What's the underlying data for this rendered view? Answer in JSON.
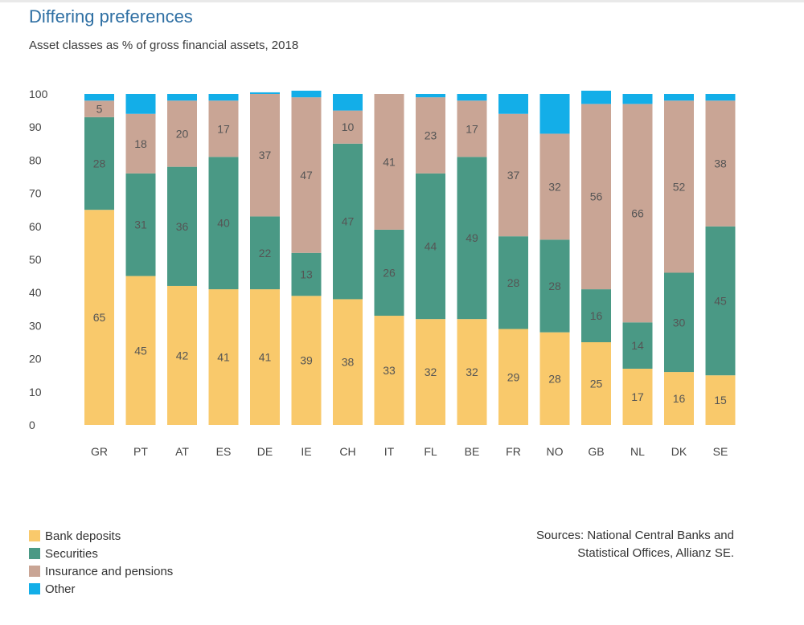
{
  "header": {
    "title": "Differing preferences",
    "subtitle": "Asset classes as % of gross financial assets, 2018"
  },
  "sources": {
    "line1": "Sources: National Central Banks and",
    "line2": "Statistical Offices, Allianz SE."
  },
  "chart_data": {
    "type": "bar",
    "stacked": true,
    "title": "Differing preferences",
    "subtitle": "Asset classes as % of gross financial assets, 2018",
    "categories": [
      "GR",
      "PT",
      "AT",
      "ES",
      "DE",
      "IE",
      "CH",
      "IT",
      "FL",
      "BE",
      "FR",
      "NO",
      "GB",
      "NL",
      "DK",
      "SE"
    ],
    "ylim": [
      0,
      100
    ],
    "yticks": [
      0,
      10,
      20,
      30,
      40,
      50,
      60,
      70,
      80,
      90,
      100
    ],
    "grid": false,
    "legend_position": "bottom-left",
    "series": [
      {
        "name": "Bank deposits",
        "color": "#f9c96b",
        "values": [
          65,
          45,
          42,
          41,
          41,
          39,
          38,
          33,
          32,
          32,
          29,
          28,
          25,
          17,
          16,
          15
        ]
      },
      {
        "name": "Securities",
        "color": "#4a9985",
        "values": [
          28,
          31,
          36,
          40,
          22,
          13,
          47,
          26,
          44,
          49,
          28,
          28,
          16,
          14,
          30,
          45
        ]
      },
      {
        "name": "Insurance and pensions",
        "color": "#c9a595",
        "values": [
          5,
          18,
          20,
          17,
          37,
          47,
          10,
          41,
          23,
          17,
          37,
          32,
          56,
          66,
          52,
          38
        ]
      },
      {
        "name": "Other",
        "color": "#13aee8",
        "values": [
          2,
          6,
          2,
          2,
          0.5,
          2,
          5,
          0,
          1,
          2,
          6,
          12,
          4,
          3,
          2,
          2
        ]
      }
    ],
    "label_series": [
      "Bank deposits",
      "Securities",
      "Insurance and pensions"
    ]
  }
}
